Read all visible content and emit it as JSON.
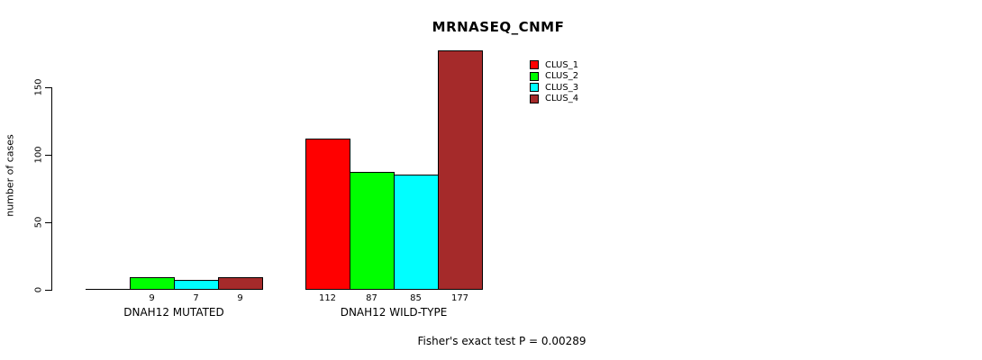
{
  "chart_data": {
    "type": "bar",
    "title": "MRNASEQ_CNMF",
    "ylabel": "number of cases",
    "xlabel": "",
    "yticks": [
      0,
      50,
      100,
      150
    ],
    "ylim": [
      0,
      180
    ],
    "grid": false,
    "legend_position": "top-right",
    "categories": [
      "DNAH12 MUTATED",
      "DNAH12 WILD-TYPE"
    ],
    "series": [
      {
        "name": "CLUS_1",
        "color": "#ff0000",
        "values": [
          0,
          112
        ]
      },
      {
        "name": "CLUS_2",
        "color": "#00ff00",
        "values": [
          9,
          87
        ]
      },
      {
        "name": "CLUS_3",
        "color": "#00ffff",
        "values": [
          7,
          85
        ]
      },
      {
        "name": "CLUS_4",
        "color": "#a52a2a",
        "values": [
          9,
          177
        ]
      }
    ],
    "bar_labels": [
      [
        "",
        "9",
        "7",
        "9"
      ],
      [
        "112",
        "87",
        "85",
        "177"
      ]
    ],
    "annotation": "Fisher's exact test P = 0.00289"
  }
}
